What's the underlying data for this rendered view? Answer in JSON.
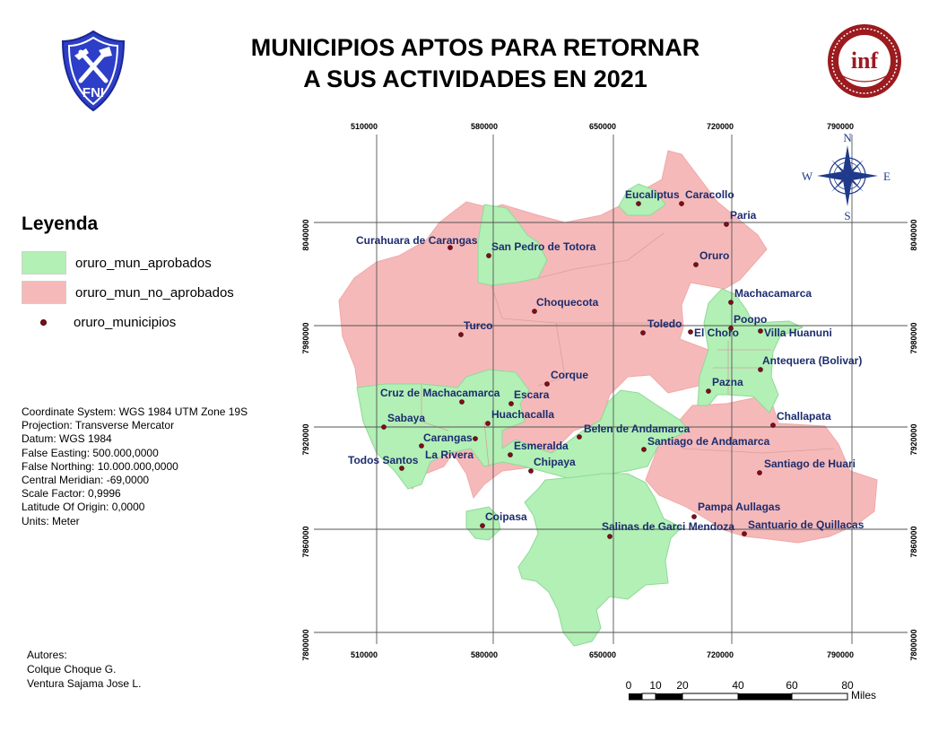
{
  "title_line1": "MUNICIPIOS APTOS PARA RETORNAR",
  "title_line2": "A SUS ACTIVIDADES EN 2021",
  "logo_left": {
    "icon": "fni-shield-logo",
    "text": "FNI",
    "color": "#2d3ec8"
  },
  "logo_right": {
    "icon": "inf-seal-logo",
    "text": "inf",
    "color": "#9b1b1f"
  },
  "legend": {
    "title": "Leyenda",
    "items": [
      {
        "label": "oruro_mun_aprobados",
        "color": "#b2f0b5"
      },
      {
        "label": "oruro_mun_no_aprobados",
        "color": "#f6b9b9"
      },
      {
        "label": "oruro_municipios",
        "color": "#8b0a1a"
      }
    ]
  },
  "metadata": [
    "Coordinate System: WGS 1984 UTM Zone 19S",
    "Projection: Transverse Mercator",
    "Datum: WGS 1984",
    "False Easting: 500.000,0000",
    "False Northing: 10.000.000,0000",
    "Central Meridian: -69,0000",
    "Scale Factor: 0,9996",
    "Latitude Of Origin: 0,0000",
    "Units: Meter"
  ],
  "authors": [
    "Autores:",
    "Colque Choque G.",
    "Ventura Sajama Jose  L."
  ],
  "grid": {
    "x_labels": [
      "510000",
      "580000",
      "650000",
      "720000",
      "790000"
    ],
    "y_labels": [
      "8040000",
      "7980000",
      "7920000",
      "7860000",
      "7800000"
    ]
  },
  "compass": {
    "n": "N",
    "s": "S",
    "e": "E",
    "w": "W"
  },
  "scale_bar": {
    "ticks": [
      "0",
      "10",
      "20",
      "40",
      "60",
      "80"
    ],
    "unit": "Miles"
  },
  "municipalities": [
    {
      "name": "Eucaliptus",
      "status": "aprobado"
    },
    {
      "name": "Caracollo",
      "status": "no_aprobado"
    },
    {
      "name": "Paria",
      "status": "no_aprobado"
    },
    {
      "name": "Curahuara de Carangas",
      "status": "no_aprobado"
    },
    {
      "name": "San Pedro de Totora",
      "status": "aprobado"
    },
    {
      "name": "Oruro",
      "status": "no_aprobado"
    },
    {
      "name": "Machacamarca",
      "status": "aprobado"
    },
    {
      "name": "Choquecota",
      "status": "no_aprobado"
    },
    {
      "name": "Poopo",
      "status": "aprobado"
    },
    {
      "name": "Toledo",
      "status": "no_aprobado"
    },
    {
      "name": "Turco",
      "status": "no_aprobado"
    },
    {
      "name": "El Choro",
      "status": "aprobado"
    },
    {
      "name": "Villa Huanuni",
      "status": "aprobado"
    },
    {
      "name": "Antequera (Bolivar)",
      "status": "aprobado"
    },
    {
      "name": "Corque",
      "status": "no_aprobado"
    },
    {
      "name": "Pazna",
      "status": "aprobado"
    },
    {
      "name": "Cruz de Machacamarca",
      "status": "aprobado"
    },
    {
      "name": "Escara",
      "status": "aprobado"
    },
    {
      "name": "Huachacalla",
      "status": "aprobado"
    },
    {
      "name": "Challapata",
      "status": "no_aprobado"
    },
    {
      "name": "Sabaya",
      "status": "aprobado"
    },
    {
      "name": "Belen de Andamarca",
      "status": "no_aprobado"
    },
    {
      "name": "Carangas",
      "status": "no_aprobado"
    },
    {
      "name": "Santiago de Andamarca",
      "status": "aprobado"
    },
    {
      "name": "Esmeralda",
      "status": "aprobado"
    },
    {
      "name": "La Rivera",
      "status": "aprobado"
    },
    {
      "name": "Todos Santos",
      "status": "no_aprobado"
    },
    {
      "name": "Chipaya",
      "status": "no_aprobado"
    },
    {
      "name": "Santiago de Huari",
      "status": "no_aprobado"
    },
    {
      "name": "Pampa Aullagas",
      "status": "no_aprobado"
    },
    {
      "name": "Coipasa",
      "status": "aprobado"
    },
    {
      "name": "Salinas de Garci Mendoza",
      "status": "aprobado"
    },
    {
      "name": "Santuario de Quillacas",
      "status": "no_aprobado"
    }
  ]
}
